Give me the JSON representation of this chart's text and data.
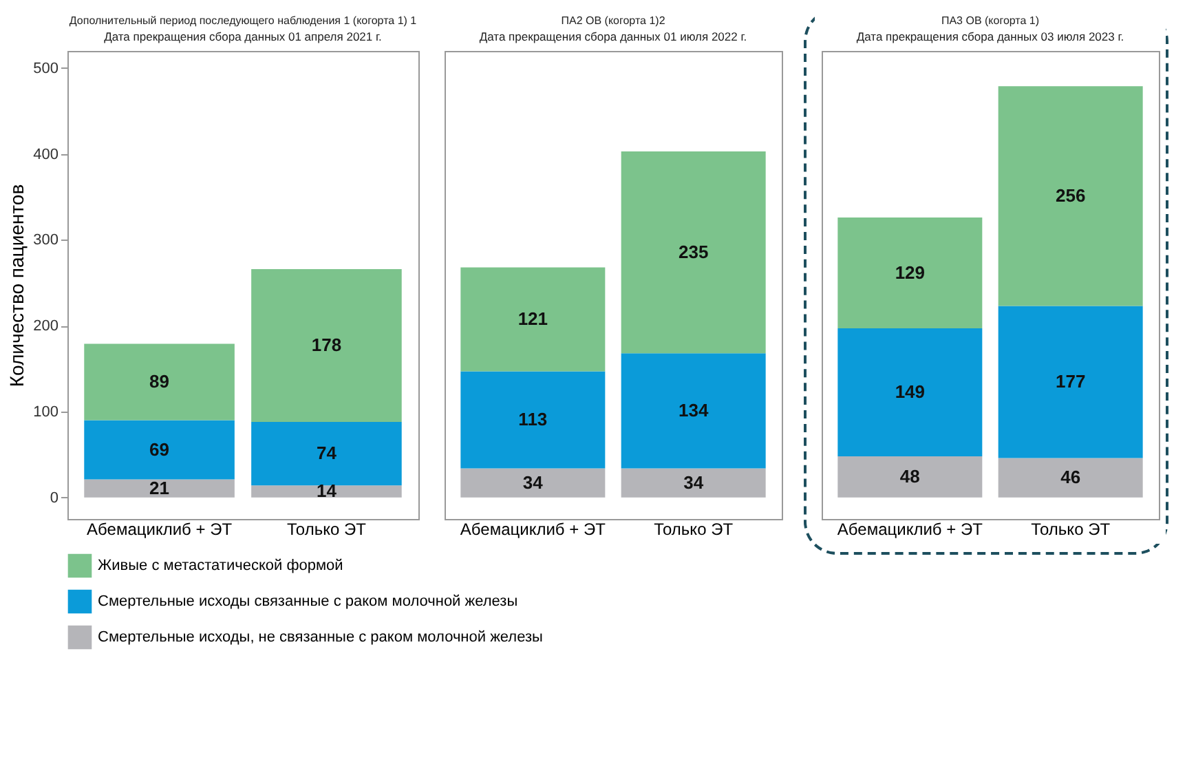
{
  "chart_data": [
    {
      "type": "bar",
      "stacked": true,
      "title": "Дополнительный период последующего наблюдения 1 (когорта 1) 1",
      "subtitle": "Дата прекращения сбора данных 01 апреля 2021 г.",
      "ylabel": "Количество пациентов",
      "categories": [
        "Абемациклиб + ЭТ",
        "Только ЭТ"
      ],
      "ylim": [
        -25,
        520
      ],
      "yticks": [
        0,
        100,
        200,
        300,
        400,
        500
      ],
      "data_labels": true,
      "legend": "bottom",
      "series": [
        {
          "name": "Смертельные исходы, не связанные с раком молочной железы",
          "color": "#b5b5b9",
          "values": [
            21,
            14
          ]
        },
        {
          "name": "Смертельные исходы связанные с раком молочной железы",
          "color": "#0b9bd9",
          "values": [
            69,
            74
          ]
        },
        {
          "name": "Живые с метастатической формой",
          "color": "#7cc38c",
          "values": [
            89,
            178
          ]
        }
      ]
    },
    {
      "type": "bar",
      "stacked": true,
      "title": "ПА2 ОВ (когорта 1)2",
      "subtitle": "Дата прекращения сбора данных 01 июля 2022 г.",
      "categories": [
        "Абемациклиб + ЭТ",
        "Только ЭТ"
      ],
      "ylim": [
        -25,
        520
      ],
      "tick_labels": "x",
      "data_labels": true,
      "series": [
        {
          "name": "Смертельные исходы, не связанные с раком молочной железы",
          "color": "#b5b5b9",
          "values": [
            34,
            34
          ]
        },
        {
          "name": "Смертельные исходы связанные с раком молочной железы",
          "color": "#0b9bd9",
          "values": [
            113,
            134
          ]
        },
        {
          "name": "Живые с метастатической формой",
          "color": "#7cc38c",
          "values": [
            121,
            235
          ]
        }
      ]
    },
    {
      "type": "bar",
      "stacked": true,
      "title": "ПА3 ОВ (когорта 1)",
      "subtitle": "Дата прекращения сбора данных 03 июля 2023 г.",
      "categories": [
        "Абемациклиб + ЭТ",
        "Только ЭТ"
      ],
      "ylim": [
        -25,
        520
      ],
      "tick_labels": "x",
      "data_labels": true,
      "series": [
        {
          "name": "Смертельные исходы, не связанные с раком молочной железы",
          "color": "#b5b5b9",
          "values": [
            48,
            46
          ]
        },
        {
          "name": "Смертельные исходы связанные с раком молочной железы",
          "color": "#0b9bd9",
          "values": [
            149,
            177
          ]
        },
        {
          "name": "Живые с метастатической формой",
          "color": "#7cc38c",
          "values": [
            129,
            256
          ]
        }
      ]
    }
  ]
}
